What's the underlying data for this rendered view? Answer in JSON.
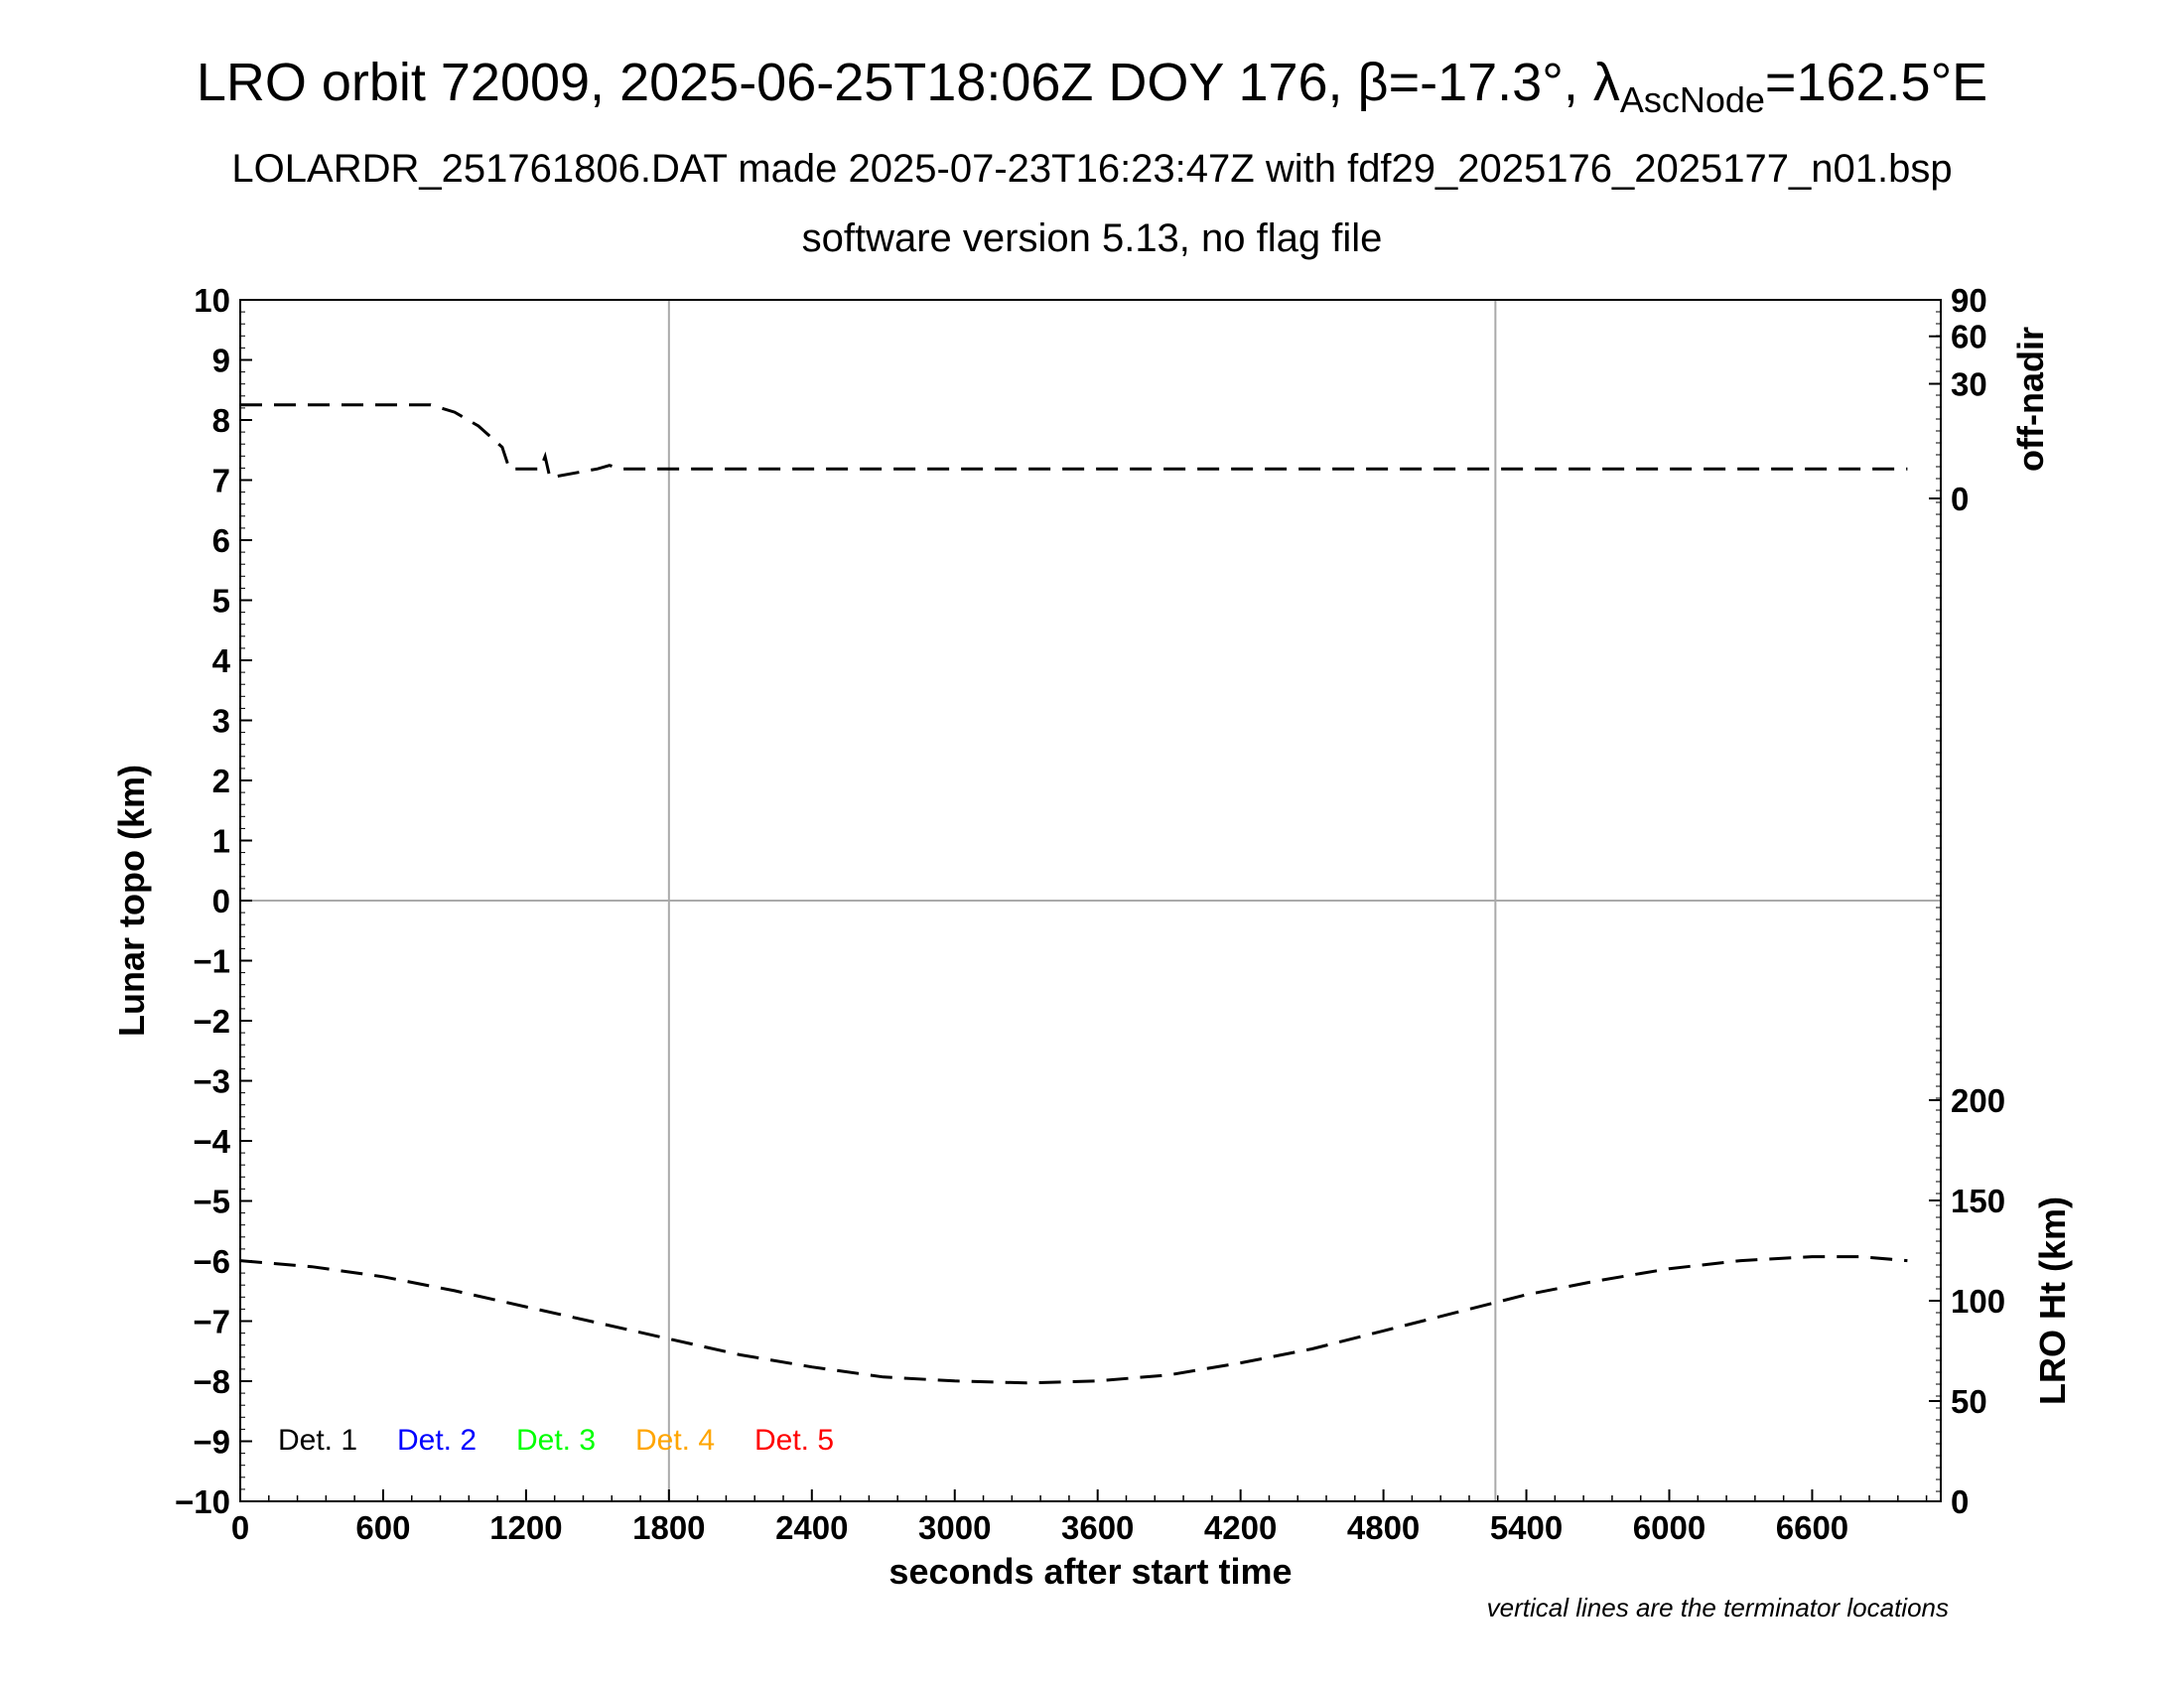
{
  "header": {
    "title_main": "LRO orbit 72009, 2025-06-25T18:06Z DOY 176, β=-17.3°, λ",
    "title_sub": "AscNode",
    "title_end": "=162.5°E",
    "subtitle1": "LOLARDR_251761806.DAT made 2025-07-23T16:23:47Z with fdf29_2025176_2025177_n01.bsp",
    "subtitle2": "software version 5.13, no flag file"
  },
  "chart_data": {
    "type": "line",
    "xlabel": "seconds after start time",
    "ylabel": "Lunar topo (km)",
    "y2label_top": "off-nadir",
    "y2label_bottom": "LRO Ht (km)",
    "note": "vertical lines are the terminator locations",
    "xlim": [
      0,
      7140
    ],
    "ylim": [
      -10,
      10
    ],
    "x_ticks": [
      "0",
      "600",
      "1200",
      "1800",
      "2400",
      "3000",
      "3600",
      "4200",
      "4800",
      "5400",
      "6000",
      "6600"
    ],
    "x_tick_values": [
      0,
      600,
      1200,
      1800,
      2400,
      3000,
      3600,
      4200,
      4800,
      5400,
      6000,
      6600
    ],
    "y_ticks": [
      "10",
      "9",
      "8",
      "7",
      "6",
      "5",
      "4",
      "3",
      "2",
      "1",
      "0",
      "−1",
      "−2",
      "−3",
      "−4",
      "−5",
      "−6",
      "−7",
      "−8",
      "−9",
      "−10"
    ],
    "y_tick_values": [
      10,
      9,
      8,
      7,
      6,
      5,
      4,
      3,
      2,
      1,
      0,
      -1,
      -2,
      -3,
      -4,
      -5,
      -6,
      -7,
      -8,
      -9,
      -10
    ],
    "offnadir_ticks": [
      "90",
      "60",
      "30",
      "0"
    ],
    "offnadir_tick_values": [
      90,
      60,
      30,
      0
    ],
    "ht_ticks": [
      "200",
      "150",
      "100",
      "50",
      "0"
    ],
    "ht_tick_values": [
      200,
      150,
      100,
      50,
      0
    ],
    "terminator_x": [
      1800,
      5270
    ],
    "grid_zero_line": true,
    "legend": [
      {
        "label": "Det. 1",
        "color": "#000000"
      },
      {
        "label": "Det. 2",
        "color": "#0000ff"
      },
      {
        "label": "Det. 3",
        "color": "#00ff00"
      },
      {
        "label": "Det. 4",
        "color": "#ffa500"
      },
      {
        "label": "Det. 5",
        "color": "#ff0000"
      }
    ],
    "series": [
      {
        "axis": "off-nadir",
        "x": [
          0,
          800,
          900,
          1000,
          1100,
          1130,
          1200,
          1260,
          1280,
          1300,
          1500,
          1550,
          1600,
          2000,
          3000,
          4000,
          5000,
          6000,
          7000
        ],
        "values": [
          20,
          20,
          17,
          12,
          6,
          2,
          2,
          2,
          4,
          1,
          2,
          2.5,
          2,
          2,
          2,
          2,
          2,
          2,
          2
        ]
      },
      {
        "axis": "LRO Ht",
        "x": [
          0,
          300,
          600,
          900,
          1200,
          1500,
          1800,
          2100,
          2400,
          2700,
          3000,
          3300,
          3600,
          3900,
          4200,
          4500,
          4800,
          5100,
          5400,
          5700,
          6000,
          6300,
          6600,
          6800,
          7000
        ],
        "values": [
          120,
          117,
          112,
          105,
          97,
          89,
          81,
          73,
          67,
          62,
          60,
          59,
          60,
          63,
          69,
          76,
          85,
          94,
          103,
          110,
          116,
          120,
          122,
          122,
          120
        ]
      }
    ]
  }
}
